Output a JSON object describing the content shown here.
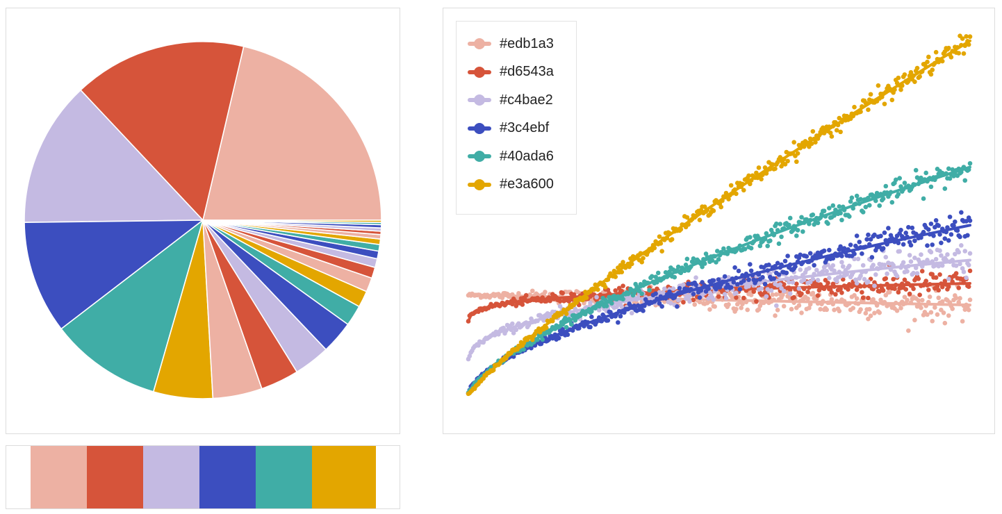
{
  "colors": [
    "#edb1a3",
    "#d6543a",
    "#c4bae2",
    "#3c4ebf",
    "#40ada6",
    "#e3a600"
  ],
  "swatches": [
    {
      "color": "#edb1a3"
    },
    {
      "color": "#d6543a"
    },
    {
      "color": "#c4bae2"
    },
    {
      "color": "#3c4ebf"
    },
    {
      "color": "#40ada6"
    },
    {
      "color": "#e3a600"
    }
  ],
  "chart_data": [
    {
      "type": "pie",
      "title": "",
      "start": "3 o'clock, counterclockwise",
      "slice_colors_cycle": [
        "#edb1a3",
        "#d6543a",
        "#c4bae2",
        "#3c4ebf",
        "#40ada6",
        "#e3a600"
      ],
      "values": [
        21.5,
        15.8,
        13.3,
        10.3,
        10.2,
        5.4,
        4.5,
        3.5,
        3.3,
        3.0,
        1.9,
        1.5,
        1.3,
        1.0,
        0.8,
        0.7,
        0.6,
        0.5,
        0.4,
        0.3,
        0.3,
        0.3,
        0.2,
        0.2
      ]
    },
    {
      "type": "scatter",
      "title": "",
      "xlabel": "",
      "ylabel": "",
      "axes_visible": false,
      "legend_position": "top-left",
      "x_range": [
        0,
        1
      ],
      "points_per_series": 400,
      "series": [
        {
          "name": "#edb1a3",
          "color": "#edb1a3",
          "trend": "slight decrease",
          "start": 0.0,
          "end": 0.0,
          "noise": 0.05
        },
        {
          "name": "#d6543a",
          "color": "#d6543a",
          "trend": "log-like flat",
          "start": -0.21,
          "end": 0.07,
          "noise": 0.04
        },
        {
          "name": "#c4bae2",
          "color": "#c4bae2",
          "trend": "slow rise",
          "start": -0.4,
          "end": 0.21,
          "noise": 0.05
        },
        {
          "name": "#3c4ebf",
          "color": "#3c4ebf",
          "trend": "moderate rise",
          "start": -0.6,
          "end": 0.42,
          "noise": 0.04
        },
        {
          "name": "#40ada6",
          "color": "#40ada6",
          "trend": "steep rise",
          "start": -0.6,
          "end": 0.77,
          "noise": 0.035
        },
        {
          "name": "#e3a600",
          "color": "#e3a600",
          "trend": "steepest rise",
          "start": -0.6,
          "end": 1.53,
          "noise": 0.03
        }
      ]
    }
  ]
}
